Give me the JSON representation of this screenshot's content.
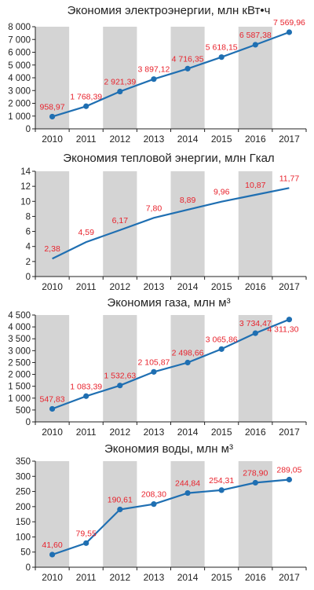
{
  "colors": {
    "line": "#1f6fb2",
    "label": "#e8232d",
    "band": "#d4d4d4",
    "axis": "#222222",
    "text": "#222222"
  },
  "chart_data": [
    {
      "type": "line",
      "title": "Экономия электроэнергии, млн кВт•ч",
      "categories": [
        "2010",
        "2011",
        "2012",
        "2013",
        "2014",
        "2015",
        "2016",
        "2017"
      ],
      "values": [
        958.97,
        1768.39,
        2921.39,
        3897.12,
        4716.35,
        5618.15,
        6587.38,
        7569.96
      ],
      "value_labels": [
        "958,97",
        "1 768,39",
        "2 921,39",
        "3 897,12",
        "4 716,35",
        "5 618,15",
        "6 587,38",
        "7 569,96"
      ],
      "ylim": [
        0,
        8000
      ],
      "yticks": [
        0,
        1000,
        2000,
        3000,
        4000,
        5000,
        6000,
        7000,
        8000
      ],
      "ytick_labels": [
        "0",
        "1 000",
        "2 000",
        "3 000",
        "4 000",
        "5 000",
        "6 000",
        "7 000",
        "8 000"
      ],
      "markers": true
    },
    {
      "type": "line",
      "title": "Экономия тепловой энергии, млн Гкал",
      "categories": [
        "2010",
        "2011",
        "2012",
        "2013",
        "2014",
        "2015",
        "2016",
        "2017"
      ],
      "values": [
        2.38,
        4.59,
        6.17,
        7.8,
        8.89,
        9.96,
        10.87,
        11.77
      ],
      "value_labels": [
        "2,38",
        "4,59",
        "6,17",
        "7,80",
        "8,89",
        "9,96",
        "10,87",
        "11,77"
      ],
      "ylim": [
        0,
        14
      ],
      "yticks": [
        0,
        2,
        4,
        6,
        8,
        10,
        12,
        14
      ],
      "ytick_labels": [
        "0",
        "2",
        "4",
        "6",
        "8",
        "10",
        "12",
        "14"
      ],
      "markers": false
    },
    {
      "type": "line",
      "title": "Экономия газа, млн м³",
      "categories": [
        "2010",
        "2011",
        "2012",
        "2013",
        "2014",
        "2015",
        "2016",
        "2017"
      ],
      "values": [
        547.83,
        1083.39,
        1532.63,
        2105.87,
        2498.66,
        3065.86,
        3734.47,
        4311.3
      ],
      "value_labels": [
        "547,83",
        "1 083,39",
        "1 532,63",
        "2 105,87",
        "2 498,66",
        "3 065,86",
        "3 734,47",
        "4 311,30"
      ],
      "ylim": [
        0,
        4500
      ],
      "yticks": [
        0,
        500,
        1000,
        1500,
        2000,
        2500,
        3000,
        3500,
        4000,
        4500
      ],
      "ytick_labels": [
        "0",
        "500",
        "1 000",
        "1 500",
        "2 000",
        "2 500",
        "3 000",
        "3 500",
        "4 000",
        "4 500"
      ],
      "markers": true
    },
    {
      "type": "line",
      "title": "Экономия воды, млн м³",
      "categories": [
        "2010",
        "2011",
        "2012",
        "2013",
        "2014",
        "2015",
        "2016",
        "2017"
      ],
      "values": [
        41.6,
        79.55,
        190.61,
        208.3,
        244.84,
        254.31,
        278.9,
        289.05
      ],
      "value_labels": [
        "41,60",
        "79,55",
        "190,61",
        "208,30",
        "244,84",
        "254,31",
        "278,90",
        "289,05"
      ],
      "ylim": [
        0,
        350
      ],
      "yticks": [
        0,
        50,
        100,
        150,
        200,
        250,
        300,
        350
      ],
      "ytick_labels": [
        "0",
        "50",
        "100",
        "150",
        "200",
        "250",
        "300",
        "350"
      ],
      "markers": true
    }
  ]
}
